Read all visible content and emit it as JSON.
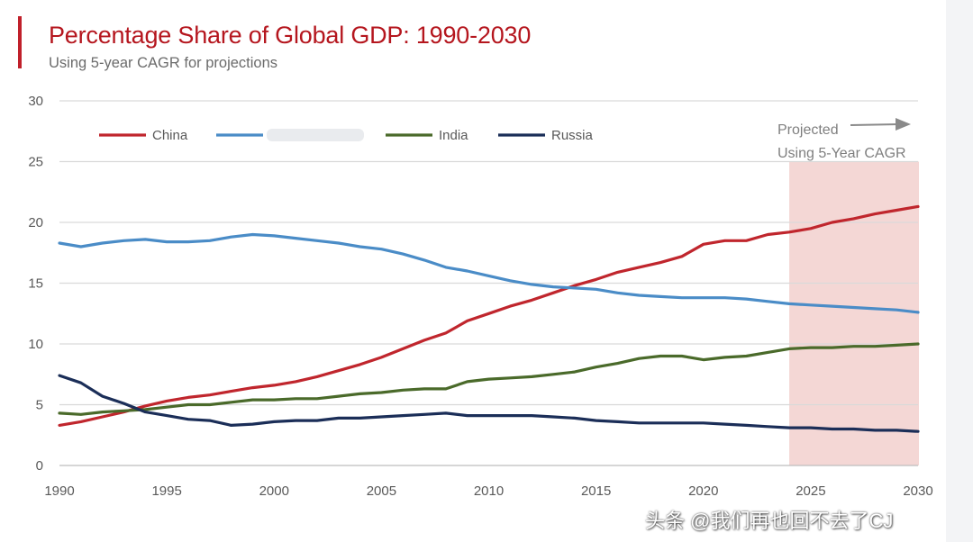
{
  "header": {
    "title": "Percentage Share of Global GDP: 1990-2030",
    "subtitle": "Using 5-year CAGR for projections"
  },
  "watermark": "头条 @我们再也回不去了CJ",
  "chart_data": {
    "type": "line",
    "title": "Percentage Share of Global GDP: 1990-2030",
    "subtitle": "Using 5-year CAGR for projections",
    "xlabel": "",
    "ylabel": "",
    "xlim": [
      1990,
      2030
    ],
    "ylim": [
      0,
      30
    ],
    "x_ticks": [
      1990,
      1995,
      2000,
      2005,
      2010,
      2015,
      2020,
      2025,
      2030
    ],
    "y_ticks": [
      0,
      5,
      10,
      15,
      20,
      25,
      30
    ],
    "grid": "horizontal",
    "legend_position": "top-left",
    "projection": {
      "label_line1": "Projected",
      "label_line2": "Using 5-Year CAGR",
      "start": 2024,
      "end": 2030.6,
      "ymax": 25,
      "color": "#f4d7d5"
    },
    "x": [
      1990,
      1991,
      1992,
      1993,
      1994,
      1995,
      1996,
      1997,
      1998,
      1999,
      2000,
      2001,
      2002,
      2003,
      2004,
      2005,
      2006,
      2007,
      2008,
      2009,
      2010,
      2011,
      2012,
      2013,
      2014,
      2015,
      2016,
      2017,
      2018,
      2019,
      2020,
      2021,
      2022,
      2023,
      2024,
      2025,
      2026,
      2027,
      2028,
      2029,
      2030
    ],
    "series": [
      {
        "name": "China",
        "color": "#c0262d",
        "values": [
          3.3,
          3.6,
          4.0,
          4.4,
          4.9,
          5.3,
          5.6,
          5.8,
          6.1,
          6.4,
          6.6,
          6.9,
          7.3,
          7.8,
          8.3,
          8.9,
          9.6,
          10.3,
          10.9,
          11.9,
          12.5,
          13.1,
          13.6,
          14.2,
          14.8,
          15.3,
          15.9,
          16.3,
          16.7,
          17.2,
          18.2,
          18.5,
          18.5,
          19.0,
          19.2,
          19.5,
          20.0,
          20.3,
          20.7,
          21.0,
          21.3
        ]
      },
      {
        "name": "",
        "color": "#4a8cc7",
        "values": [
          18.3,
          18.0,
          18.3,
          18.5,
          18.6,
          18.4,
          18.4,
          18.5,
          18.8,
          19.0,
          18.9,
          18.7,
          18.5,
          18.3,
          18.0,
          17.8,
          17.4,
          16.9,
          16.3,
          16.0,
          15.6,
          15.2,
          14.9,
          14.7,
          14.6,
          14.5,
          14.2,
          14.0,
          13.9,
          13.8,
          13.8,
          13.8,
          13.7,
          13.5,
          13.3,
          13.2,
          13.1,
          13.0,
          12.9,
          12.8,
          12.6
        ]
      },
      {
        "name": "India",
        "color": "#4a6a2a",
        "values": [
          4.3,
          4.2,
          4.4,
          4.5,
          4.6,
          4.8,
          5.0,
          5.0,
          5.2,
          5.4,
          5.4,
          5.5,
          5.5,
          5.7,
          5.9,
          6.0,
          6.2,
          6.3,
          6.3,
          6.9,
          7.1,
          7.2,
          7.3,
          7.5,
          7.7,
          8.1,
          8.4,
          8.8,
          9.0,
          9.0,
          8.7,
          8.9,
          9.0,
          9.3,
          9.6,
          9.7,
          9.7,
          9.8,
          9.8,
          9.9,
          10.0
        ]
      },
      {
        "name": "Russia",
        "color": "#1b2e58",
        "values": [
          7.4,
          6.8,
          5.7,
          5.1,
          4.4,
          4.1,
          3.8,
          3.7,
          3.3,
          3.4,
          3.6,
          3.7,
          3.7,
          3.9,
          3.9,
          4.0,
          4.1,
          4.2,
          4.3,
          4.1,
          4.1,
          4.1,
          4.1,
          4.0,
          3.9,
          3.7,
          3.6,
          3.5,
          3.5,
          3.5,
          3.5,
          3.4,
          3.3,
          3.2,
          3.1,
          3.1,
          3.0,
          3.0,
          2.9,
          2.9,
          2.8
        ]
      }
    ]
  }
}
